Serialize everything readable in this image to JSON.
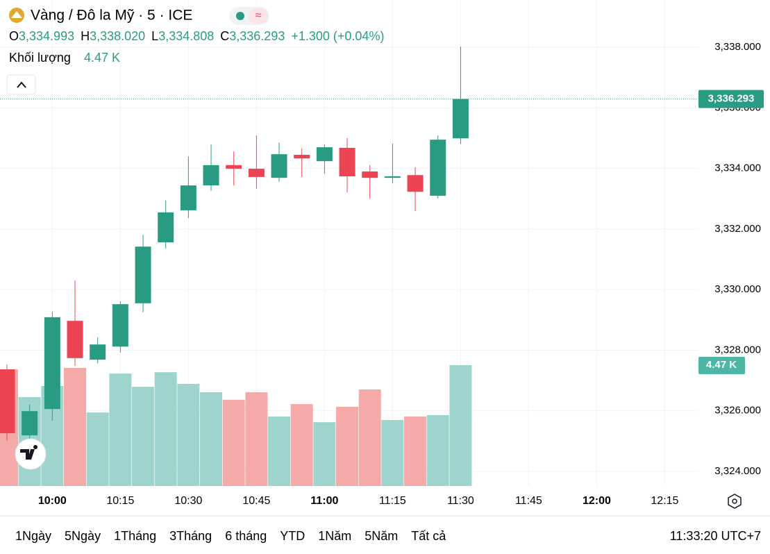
{
  "header": {
    "title": "Vàng / Đô la Mỹ · 5 · ICE",
    "ohlc": [
      {
        "key": "O",
        "value": "3,334.993"
      },
      {
        "key": "H",
        "value": "3,338.020"
      },
      {
        "key": "L",
        "value": "3,334.808"
      },
      {
        "key": "C",
        "value": "3,336.293"
      }
    ],
    "change": "+1.300 (+0.04%)",
    "volume_title": "Khối lượng",
    "volume_value": "4.47 K"
  },
  "chart_data": {
    "type": "candlestick",
    "open": [
      3327.37,
      3325.19,
      3326.06,
      3328.97,
      3327.69,
      3328.12,
      3329.55,
      3331.56,
      3332.62,
      3333.44,
      3334.11,
      3333.99,
      3333.69,
      3334.45,
      3334.24,
      3334.68,
      3333.9,
      3333.69,
      3333.78,
      3333.1,
      3334.993
    ],
    "high": [
      3327.53,
      3326.2,
      3329.27,
      3330.3,
      3328.42,
      3329.61,
      3331.81,
      3332.94,
      3334.4,
      3334.79,
      3334.56,
      3335.09,
      3334.86,
      3334.66,
      3334.79,
      3335.0,
      3334.11,
      3334.82,
      3334.04,
      3335.09,
      3338.02
    ],
    "low": [
      3325.03,
      3324.99,
      3325.67,
      3327.48,
      3327.57,
      3327.92,
      3329.25,
      3331.36,
      3332.36,
      3333.26,
      3333.44,
      3333.33,
      3333.56,
      3333.72,
      3333.83,
      3333.21,
      3333.01,
      3333.51,
      3332.59,
      3333.01,
      3334.808
    ],
    "close": [
      3325.26,
      3325.99,
      3329.09,
      3327.74,
      3328.19,
      3329.52,
      3331.42,
      3332.55,
      3333.44,
      3334.11,
      3333.99,
      3333.72,
      3334.47,
      3334.33,
      3334.7,
      3333.74,
      3333.69,
      3333.74,
      3333.23,
      3334.95,
      3336.293
    ],
    "volume": [
      4316,
      3290,
      3700,
      4370,
      2720,
      4160,
      3670,
      4210,
      3780,
      3470,
      3190,
      3470,
      2570,
      3030,
      2360,
      2930,
      3570,
      2440,
      2570,
      2620,
      4470
    ],
    "up_color": "#2a9b83",
    "down_color": "#ec4452",
    "volume_up_color": "#9ed4cd",
    "volume_down_color": "#f4aaa9",
    "ylim": [
      3323.52,
      3339.56
    ],
    "yticks": [
      {
        "value": 3324,
        "label": "3,324.000"
      },
      {
        "value": 3326,
        "label": "3,326.000"
      },
      {
        "value": 3328,
        "label": "3,328.000"
      },
      {
        "value": 3330,
        "label": "3,330.000"
      },
      {
        "value": 3332,
        "label": "3,332.000"
      },
      {
        "value": 3334,
        "label": "3,334.000"
      },
      {
        "value": 3336,
        "label": "3,336.000"
      },
      {
        "value": 3338,
        "label": "3,338.000"
      }
    ],
    "xticks": [
      "10:00",
      "10:15",
      "10:30",
      "10:45",
      "11:00",
      "11:15",
      "11:30",
      "11:45",
      "12:00",
      "12:15"
    ],
    "last_price_label": "3,336.293",
    "volume_marker_label": "4.47 K",
    "grid": true
  },
  "toolbar": {
    "ranges": [
      "1Ngày",
      "5Ngày",
      "1Tháng",
      "3Tháng",
      "6 tháng",
      "YTD",
      "1Năm",
      "5Năm",
      "Tất cả"
    ],
    "clock": "11:33:20 UTC+7"
  }
}
